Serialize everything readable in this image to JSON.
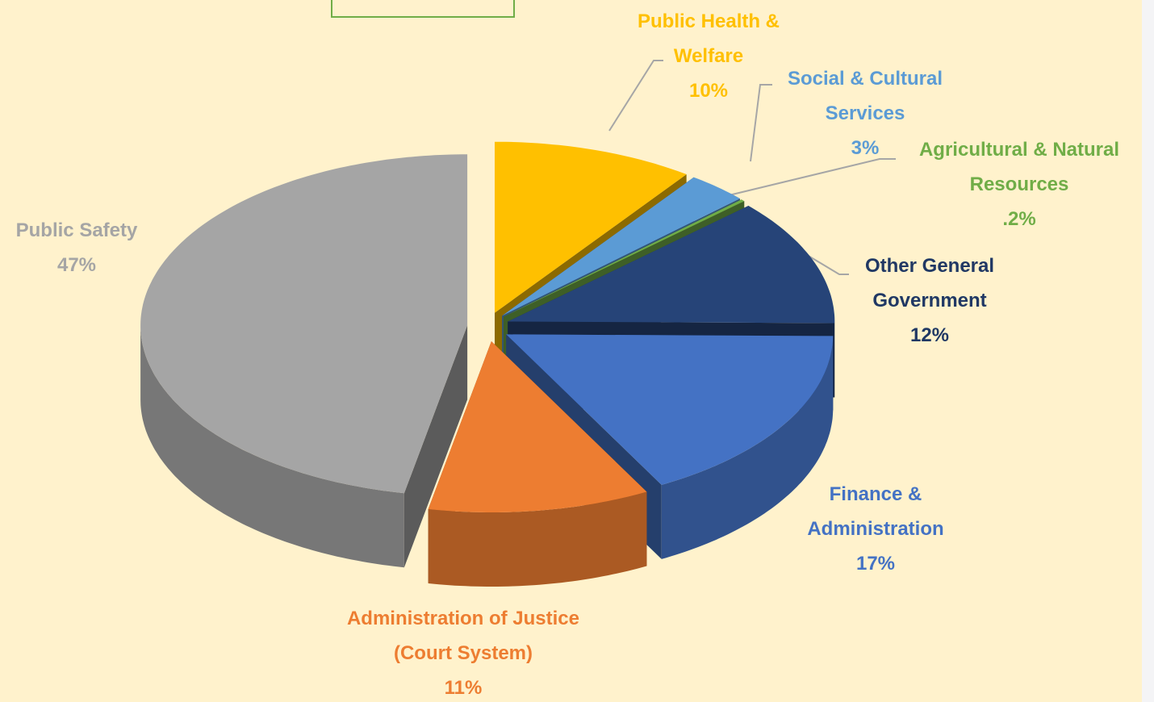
{
  "chart_data": {
    "type": "pie",
    "categories": [
      "Public Health & Welfare",
      "Social & Cultural Services",
      "Agricultural & Natural Resources",
      "Other General Government",
      "Finance & Administration",
      "Administration of Justice (Court System)",
      "Public Safety"
    ],
    "values": [
      10,
      3,
      0.2,
      12,
      17,
      11,
      47
    ],
    "value_labels": [
      "10%",
      "3%",
      ".2%",
      "12%",
      "17%",
      "11%",
      "47%"
    ],
    "colors": [
      "#ffc000",
      "#5b9bd5",
      "#70ad47",
      "#264478",
      "#4472c4",
      "#ed7d31",
      "#a5a5a5"
    ],
    "label_colors": [
      "#ffc000",
      "#5b9bd5",
      "#70ad47",
      "#203864",
      "#4472c4",
      "#ed7d31",
      "#a5a5a5"
    ]
  }
}
